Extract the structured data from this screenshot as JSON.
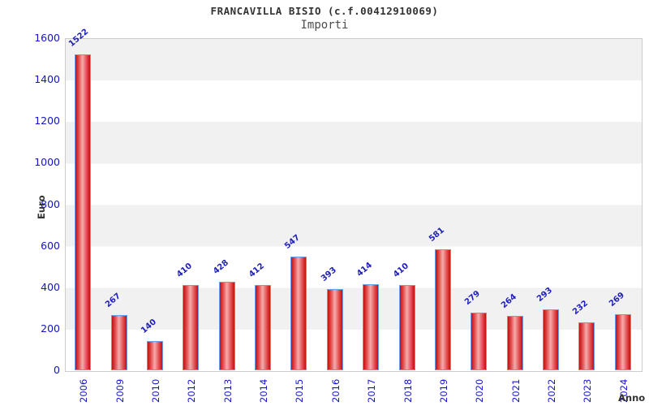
{
  "header": {
    "title": "FRANCAVILLA BISIO (c.f.00412910069)",
    "subtitle": "Importi"
  },
  "chart_data": {
    "type": "bar",
    "title": "FRANCAVILLA BISIO (c.f.00412910069)",
    "subtitle": "Importi",
    "xlabel": "Anno",
    "ylabel": "Euro",
    "categories": [
      "2006",
      "2009",
      "2010",
      "2012",
      "2013",
      "2014",
      "2015",
      "2016",
      "2017",
      "2018",
      "2019",
      "2020",
      "2021",
      "2022",
      "2023",
      "2024"
    ],
    "values": [
      1522,
      267,
      140,
      410,
      428,
      412,
      547,
      393,
      414,
      410,
      581,
      279,
      264,
      293,
      232,
      269
    ],
    "ylim": [
      0,
      1600
    ],
    "yticks": [
      0,
      200,
      400,
      600,
      800,
      1000,
      1200,
      1400,
      1600
    ],
    "grid": "alternating horizontal bands every 200 units, gray top band",
    "legend": "none",
    "colors": {
      "bar_fill": "#d41515",
      "bar_highlight": "#f5acac",
      "bar_border": "#6b9fe8",
      "tick_label": "#1414cc",
      "value_label": "#1f1fbe",
      "band": "#f1f1f1",
      "plot_border": "#cccccc",
      "title": "#333333",
      "subtitle": "#4d4d4d",
      "axis_name": "#333333"
    }
  }
}
